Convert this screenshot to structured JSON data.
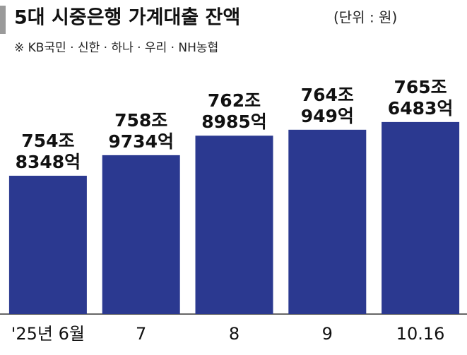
{
  "chart_data": {
    "type": "bar",
    "title": "5대 시중은행 가계대출 잔액",
    "subtitle": "(단위 : 원)",
    "note": "※ KB국민 · 신한 · 하나 · 우리 · NH농협",
    "categories": [
      "'25년 6월",
      "7",
      "8",
      "9",
      "10.16"
    ],
    "values": [
      7548348,
      7589734,
      7628985,
      7640949,
      7656483
    ],
    "value_labels": [
      [
        "754조",
        "8348억"
      ],
      [
        "758조",
        "9734억"
      ],
      [
        "762조",
        "8985억"
      ],
      [
        "764조",
        "949억"
      ],
      [
        "765조",
        "6483억"
      ]
    ],
    "color": "#2b3990",
    "ylim": [
      7270000,
      7760000
    ]
  }
}
